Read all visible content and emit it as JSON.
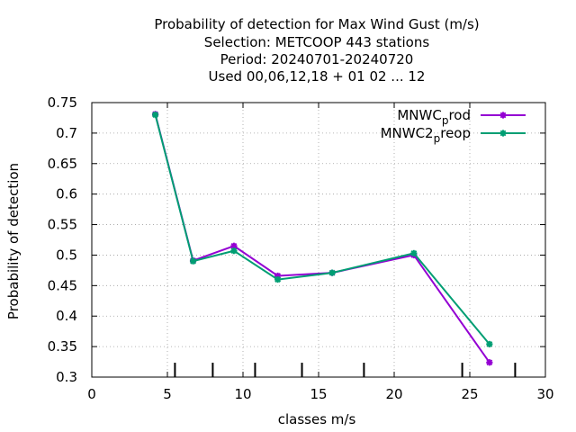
{
  "chart_data": {
    "type": "line",
    "title_lines": [
      "Probability of detection  for Max Wind Gust (m/s)",
      "Selection: METCOOP    443 stations",
      "Period: 20240701-20240720",
      "Used  00,06,12,18 + 01 02 ... 12"
    ],
    "xlabel": "classes m/s",
    "ylabel": "Probability of detection",
    "xlim": [
      0,
      30
    ],
    "ylim": [
      0.3,
      0.75
    ],
    "xticks": [
      0,
      5,
      10,
      15,
      20,
      25,
      30
    ],
    "yticks": [
      0.3,
      0.35,
      0.4,
      0.45,
      0.5,
      0.55,
      0.6,
      0.65,
      0.7,
      0.75
    ],
    "xtick_labels": [
      "0",
      "5",
      "10",
      "15",
      "20",
      "25",
      "30"
    ],
    "ytick_labels": [
      "0.3",
      "0.35",
      "0.4",
      "0.45",
      "0.5",
      "0.55",
      "0.6",
      "0.65",
      "0.7",
      "0.75"
    ],
    "class_boundaries": [
      5.5,
      8.0,
      10.8,
      13.9,
      18.0,
      24.5,
      28.0
    ],
    "grid": true,
    "legend_position": "top-right",
    "series": [
      {
        "name_base": "MNWC",
        "name_sub": "p",
        "name_rest": "rod",
        "color": "#9400d3",
        "x": [
          4.2,
          6.7,
          9.4,
          12.3,
          15.9,
          21.3,
          26.3
        ],
        "y": [
          0.731,
          0.491,
          0.515,
          0.466,
          0.471,
          0.5,
          0.324
        ]
      },
      {
        "name_base": "MNWC2",
        "name_sub": "p",
        "name_rest": "reop",
        "color": "#009e73",
        "x": [
          4.2,
          6.7,
          9.4,
          12.3,
          15.9,
          21.3,
          26.3
        ],
        "y": [
          0.73,
          0.49,
          0.507,
          0.46,
          0.471,
          0.503,
          0.354
        ]
      }
    ]
  }
}
